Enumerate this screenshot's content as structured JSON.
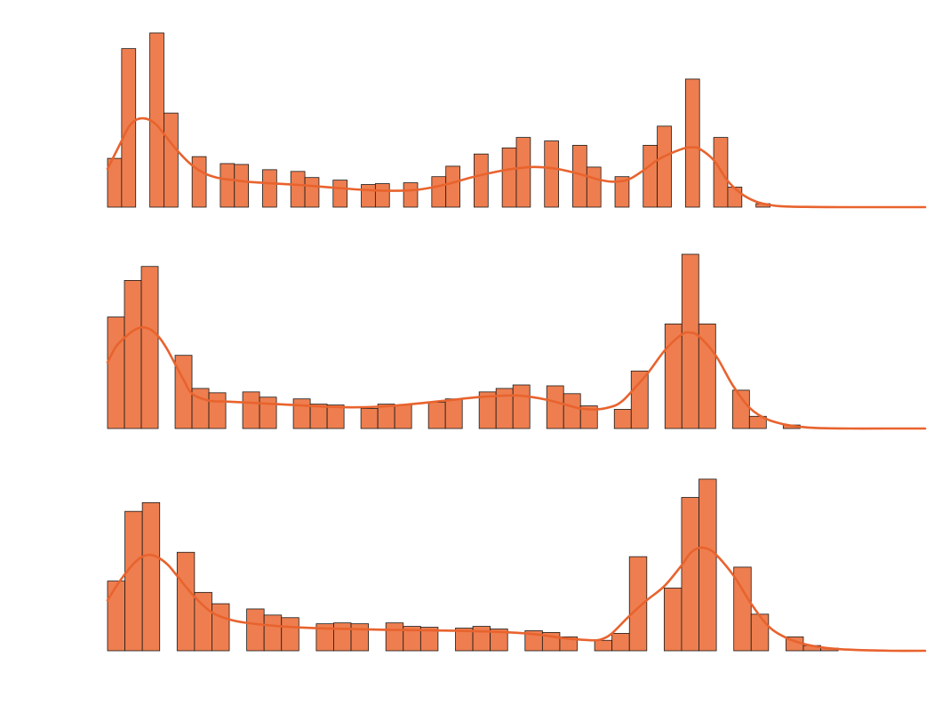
{
  "colors": {
    "bar_fill": "#EE7E4F",
    "bar_edge": "#1a1a1a",
    "kde_line": "#E8632E",
    "background": "#ffffff"
  },
  "chart_data": [
    {
      "type": "bar",
      "subtype": "histogram-with-kde",
      "title": "",
      "xlabel": "",
      "ylabel": "",
      "axes_visible": false,
      "grid": false,
      "bin_width": 1,
      "xlim": [
        0,
        58
      ],
      "ylim": [
        0,
        1.0
      ],
      "bins": [
        {
          "x": 0,
          "v": 0.28
        },
        {
          "x": 1,
          "v": 0.91
        },
        {
          "x": 3,
          "v": 1.0
        },
        {
          "x": 4,
          "v": 0.54
        },
        {
          "x": 6,
          "v": 0.29
        },
        {
          "x": 8,
          "v": 0.25
        },
        {
          "x": 9,
          "v": 0.245
        },
        {
          "x": 11,
          "v": 0.215
        },
        {
          "x": 13,
          "v": 0.205
        },
        {
          "x": 14,
          "v": 0.17
        },
        {
          "x": 16,
          "v": 0.155
        },
        {
          "x": 18,
          "v": 0.13
        },
        {
          "x": 19,
          "v": 0.135
        },
        {
          "x": 21,
          "v": 0.14
        },
        {
          "x": 23,
          "v": 0.175
        },
        {
          "x": 24,
          "v": 0.235
        },
        {
          "x": 26,
          "v": 0.305
        },
        {
          "x": 28,
          "v": 0.34
        },
        {
          "x": 29,
          "v": 0.4
        },
        {
          "x": 31,
          "v": 0.38
        },
        {
          "x": 33,
          "v": 0.355
        },
        {
          "x": 34,
          "v": 0.23
        },
        {
          "x": 36,
          "v": 0.175
        },
        {
          "x": 38,
          "v": 0.355
        },
        {
          "x": 39,
          "v": 0.465
        },
        {
          "x": 41,
          "v": 0.735
        },
        {
          "x": 43,
          "v": 0.4
        },
        {
          "x": 44,
          "v": 0.115
        },
        {
          "x": 46,
          "v": 0.02
        }
      ],
      "kde": {
        "x": [
          0,
          0.5,
          1,
          1.5,
          2,
          2.5,
          3,
          3.5,
          4,
          5,
          6,
          7,
          8,
          9,
          10,
          12,
          14,
          16,
          18,
          20,
          22,
          24,
          26,
          28,
          29,
          30,
          31,
          32,
          33,
          34,
          35,
          36,
          37,
          38,
          39,
          40,
          41,
          41.5,
          42,
          43,
          44,
          45,
          46,
          47,
          48,
          50,
          52,
          54,
          56,
          58
        ],
        "y": [
          0.22,
          0.3,
          0.38,
          0.46,
          0.5,
          0.51,
          0.5,
          0.47,
          0.42,
          0.32,
          0.24,
          0.19,
          0.165,
          0.155,
          0.145,
          0.135,
          0.125,
          0.112,
          0.1,
          0.094,
          0.1,
          0.13,
          0.175,
          0.21,
          0.222,
          0.23,
          0.228,
          0.218,
          0.2,
          0.178,
          0.155,
          0.146,
          0.16,
          0.21,
          0.27,
          0.31,
          0.34,
          0.343,
          0.335,
          0.27,
          0.15,
          0.075,
          0.032,
          0.012,
          0.004,
          0.001,
          0,
          0,
          0,
          0
        ]
      }
    },
    {
      "type": "bar",
      "subtype": "histogram-with-kde",
      "title": "",
      "xlabel": "",
      "ylabel": "",
      "axes_visible": false,
      "grid": false,
      "bin_width": 1,
      "xlim": [
        0,
        48.4
      ],
      "ylim": [
        0,
        1.0
      ],
      "bins": [
        {
          "x": 0,
          "v": 0.64
        },
        {
          "x": 1,
          "v": 0.85
        },
        {
          "x": 2,
          "v": 0.93
        },
        {
          "x": 4,
          "v": 0.42
        },
        {
          "x": 5,
          "v": 0.23
        },
        {
          "x": 6,
          "v": 0.205
        },
        {
          "x": 8,
          "v": 0.21
        },
        {
          "x": 9,
          "v": 0.18
        },
        {
          "x": 11,
          "v": 0.17
        },
        {
          "x": 12,
          "v": 0.14
        },
        {
          "x": 13,
          "v": 0.135
        },
        {
          "x": 15,
          "v": 0.115
        },
        {
          "x": 16,
          "v": 0.14
        },
        {
          "x": 17,
          "v": 0.135
        },
        {
          "x": 19,
          "v": 0.15
        },
        {
          "x": 20,
          "v": 0.17
        },
        {
          "x": 22,
          "v": 0.21
        },
        {
          "x": 23,
          "v": 0.23
        },
        {
          "x": 24,
          "v": 0.25
        },
        {
          "x": 26,
          "v": 0.245
        },
        {
          "x": 27,
          "v": 0.2
        },
        {
          "x": 28,
          "v": 0.13
        },
        {
          "x": 30,
          "v": 0.11
        },
        {
          "x": 31,
          "v": 0.33
        },
        {
          "x": 33,
          "v": 0.6
        },
        {
          "x": 34,
          "v": 1.0
        },
        {
          "x": 35,
          "v": 0.6
        },
        {
          "x": 37,
          "v": 0.22
        },
        {
          "x": 38,
          "v": 0.07
        },
        {
          "x": 40,
          "v": 0.02
        }
      ],
      "kde": {
        "x": [
          0,
          0.5,
          1,
          1.5,
          2,
          2.5,
          3,
          3.5,
          4,
          4.5,
          5,
          6,
          7,
          8,
          10,
          12,
          14,
          16,
          18,
          20,
          22,
          24,
          25,
          26,
          27,
          28,
          29,
          30,
          30.5,
          31,
          32,
          33,
          34,
          34.5,
          35,
          36,
          37,
          38,
          39,
          40,
          41,
          42,
          44,
          46,
          48.4
        ],
        "y": [
          0.38,
          0.47,
          0.52,
          0.56,
          0.58,
          0.57,
          0.53,
          0.46,
          0.37,
          0.28,
          0.2,
          0.16,
          0.155,
          0.15,
          0.14,
          0.13,
          0.122,
          0.125,
          0.14,
          0.16,
          0.18,
          0.19,
          0.182,
          0.165,
          0.14,
          0.115,
          0.11,
          0.13,
          0.16,
          0.21,
          0.32,
          0.45,
          0.54,
          0.55,
          0.53,
          0.42,
          0.25,
          0.12,
          0.055,
          0.025,
          0.01,
          0.003,
          0,
          0,
          0
        ]
      }
    },
    {
      "type": "bar",
      "subtype": "histogram-with-kde",
      "title": "",
      "xlabel": "",
      "ylabel": "",
      "axes_visible": false,
      "grid": false,
      "bin_width": 1,
      "xlim": [
        0,
        47
      ],
      "ylim": [
        0,
        1.0
      ],
      "bins": [
        {
          "x": 0,
          "v": 0.4
        },
        {
          "x": 1,
          "v": 0.8
        },
        {
          "x": 2,
          "v": 0.85
        },
        {
          "x": 4,
          "v": 0.565
        },
        {
          "x": 5,
          "v": 0.335
        },
        {
          "x": 6,
          "v": 0.27
        },
        {
          "x": 8,
          "v": 0.24
        },
        {
          "x": 9,
          "v": 0.205
        },
        {
          "x": 10,
          "v": 0.19
        },
        {
          "x": 12,
          "v": 0.155
        },
        {
          "x": 13,
          "v": 0.16
        },
        {
          "x": 14,
          "v": 0.155
        },
        {
          "x": 16,
          "v": 0.16
        },
        {
          "x": 17,
          "v": 0.14
        },
        {
          "x": 18,
          "v": 0.135
        },
        {
          "x": 20,
          "v": 0.13
        },
        {
          "x": 21,
          "v": 0.14
        },
        {
          "x": 22,
          "v": 0.125
        },
        {
          "x": 24,
          "v": 0.115
        },
        {
          "x": 25,
          "v": 0.105
        },
        {
          "x": 26,
          "v": 0.08
        },
        {
          "x": 28,
          "v": 0.06
        },
        {
          "x": 29,
          "v": 0.1
        },
        {
          "x": 30,
          "v": 0.54
        },
        {
          "x": 32,
          "v": 0.36
        },
        {
          "x": 33,
          "v": 0.88
        },
        {
          "x": 34,
          "v": 0.985
        },
        {
          "x": 36,
          "v": 0.48
        },
        {
          "x": 37,
          "v": 0.21
        },
        {
          "x": 39,
          "v": 0.08
        },
        {
          "x": 40,
          "v": 0.03
        },
        {
          "x": 41,
          "v": 0.015
        }
      ],
      "kde": {
        "x": [
          0,
          0.5,
          1,
          1.5,
          2,
          2.5,
          3,
          3.5,
          4,
          5,
          6,
          7,
          8,
          10,
          12,
          14,
          16,
          18,
          20,
          22,
          24,
          25,
          26,
          27,
          28,
          28.5,
          29,
          30,
          31,
          32,
          33,
          33.5,
          34,
          34.5,
          35,
          36,
          37,
          38,
          39,
          40,
          41,
          42,
          43,
          44,
          45,
          47
        ],
        "y": [
          0.29,
          0.37,
          0.44,
          0.5,
          0.54,
          0.55,
          0.53,
          0.49,
          0.43,
          0.31,
          0.22,
          0.18,
          0.16,
          0.14,
          0.13,
          0.125,
          0.12,
          0.118,
          0.115,
          0.11,
          0.1,
          0.09,
          0.075,
          0.065,
          0.06,
          0.07,
          0.1,
          0.2,
          0.29,
          0.37,
          0.49,
          0.56,
          0.59,
          0.585,
          0.55,
          0.43,
          0.27,
          0.14,
          0.075,
          0.04,
          0.02,
          0.01,
          0.005,
          0.002,
          0,
          0
        ]
      }
    }
  ]
}
